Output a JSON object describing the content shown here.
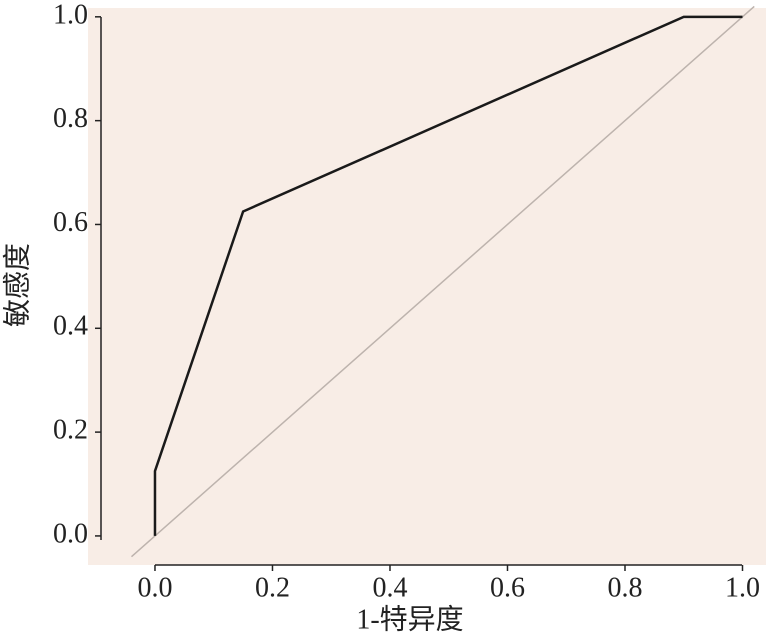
{
  "chart_data": {
    "type": "line",
    "x_label": "1-特异度",
    "y_label": "敏感度",
    "xlim": [
      -0.114,
      1.04
    ],
    "ylim": [
      -0.056,
      1.017
    ],
    "xticks": [
      {
        "value": 0,
        "label": "0.0"
      },
      0.2,
      0.4,
      0.6,
      0.8,
      {
        "value": 1,
        "label": "1.0"
      }
    ],
    "yticks": [
      {
        "value": 0,
        "label": "0.0"
      },
      0.2,
      0.4,
      0.6,
      0.8,
      {
        "value": 1,
        "label": "1.0"
      }
    ],
    "background": "#f8ede6",
    "series": [
      {
        "color": "#1a1a1a",
        "x": [
          0,
          0,
          0.15,
          0.9,
          1
        ],
        "values": [
          0,
          0.125,
          0.625,
          1,
          1
        ]
      },
      {
        "color": "#bdb3ad",
        "x": [
          -0.04,
          1.02
        ],
        "values": [
          -0.04,
          1.02
        ]
      }
    ]
  }
}
